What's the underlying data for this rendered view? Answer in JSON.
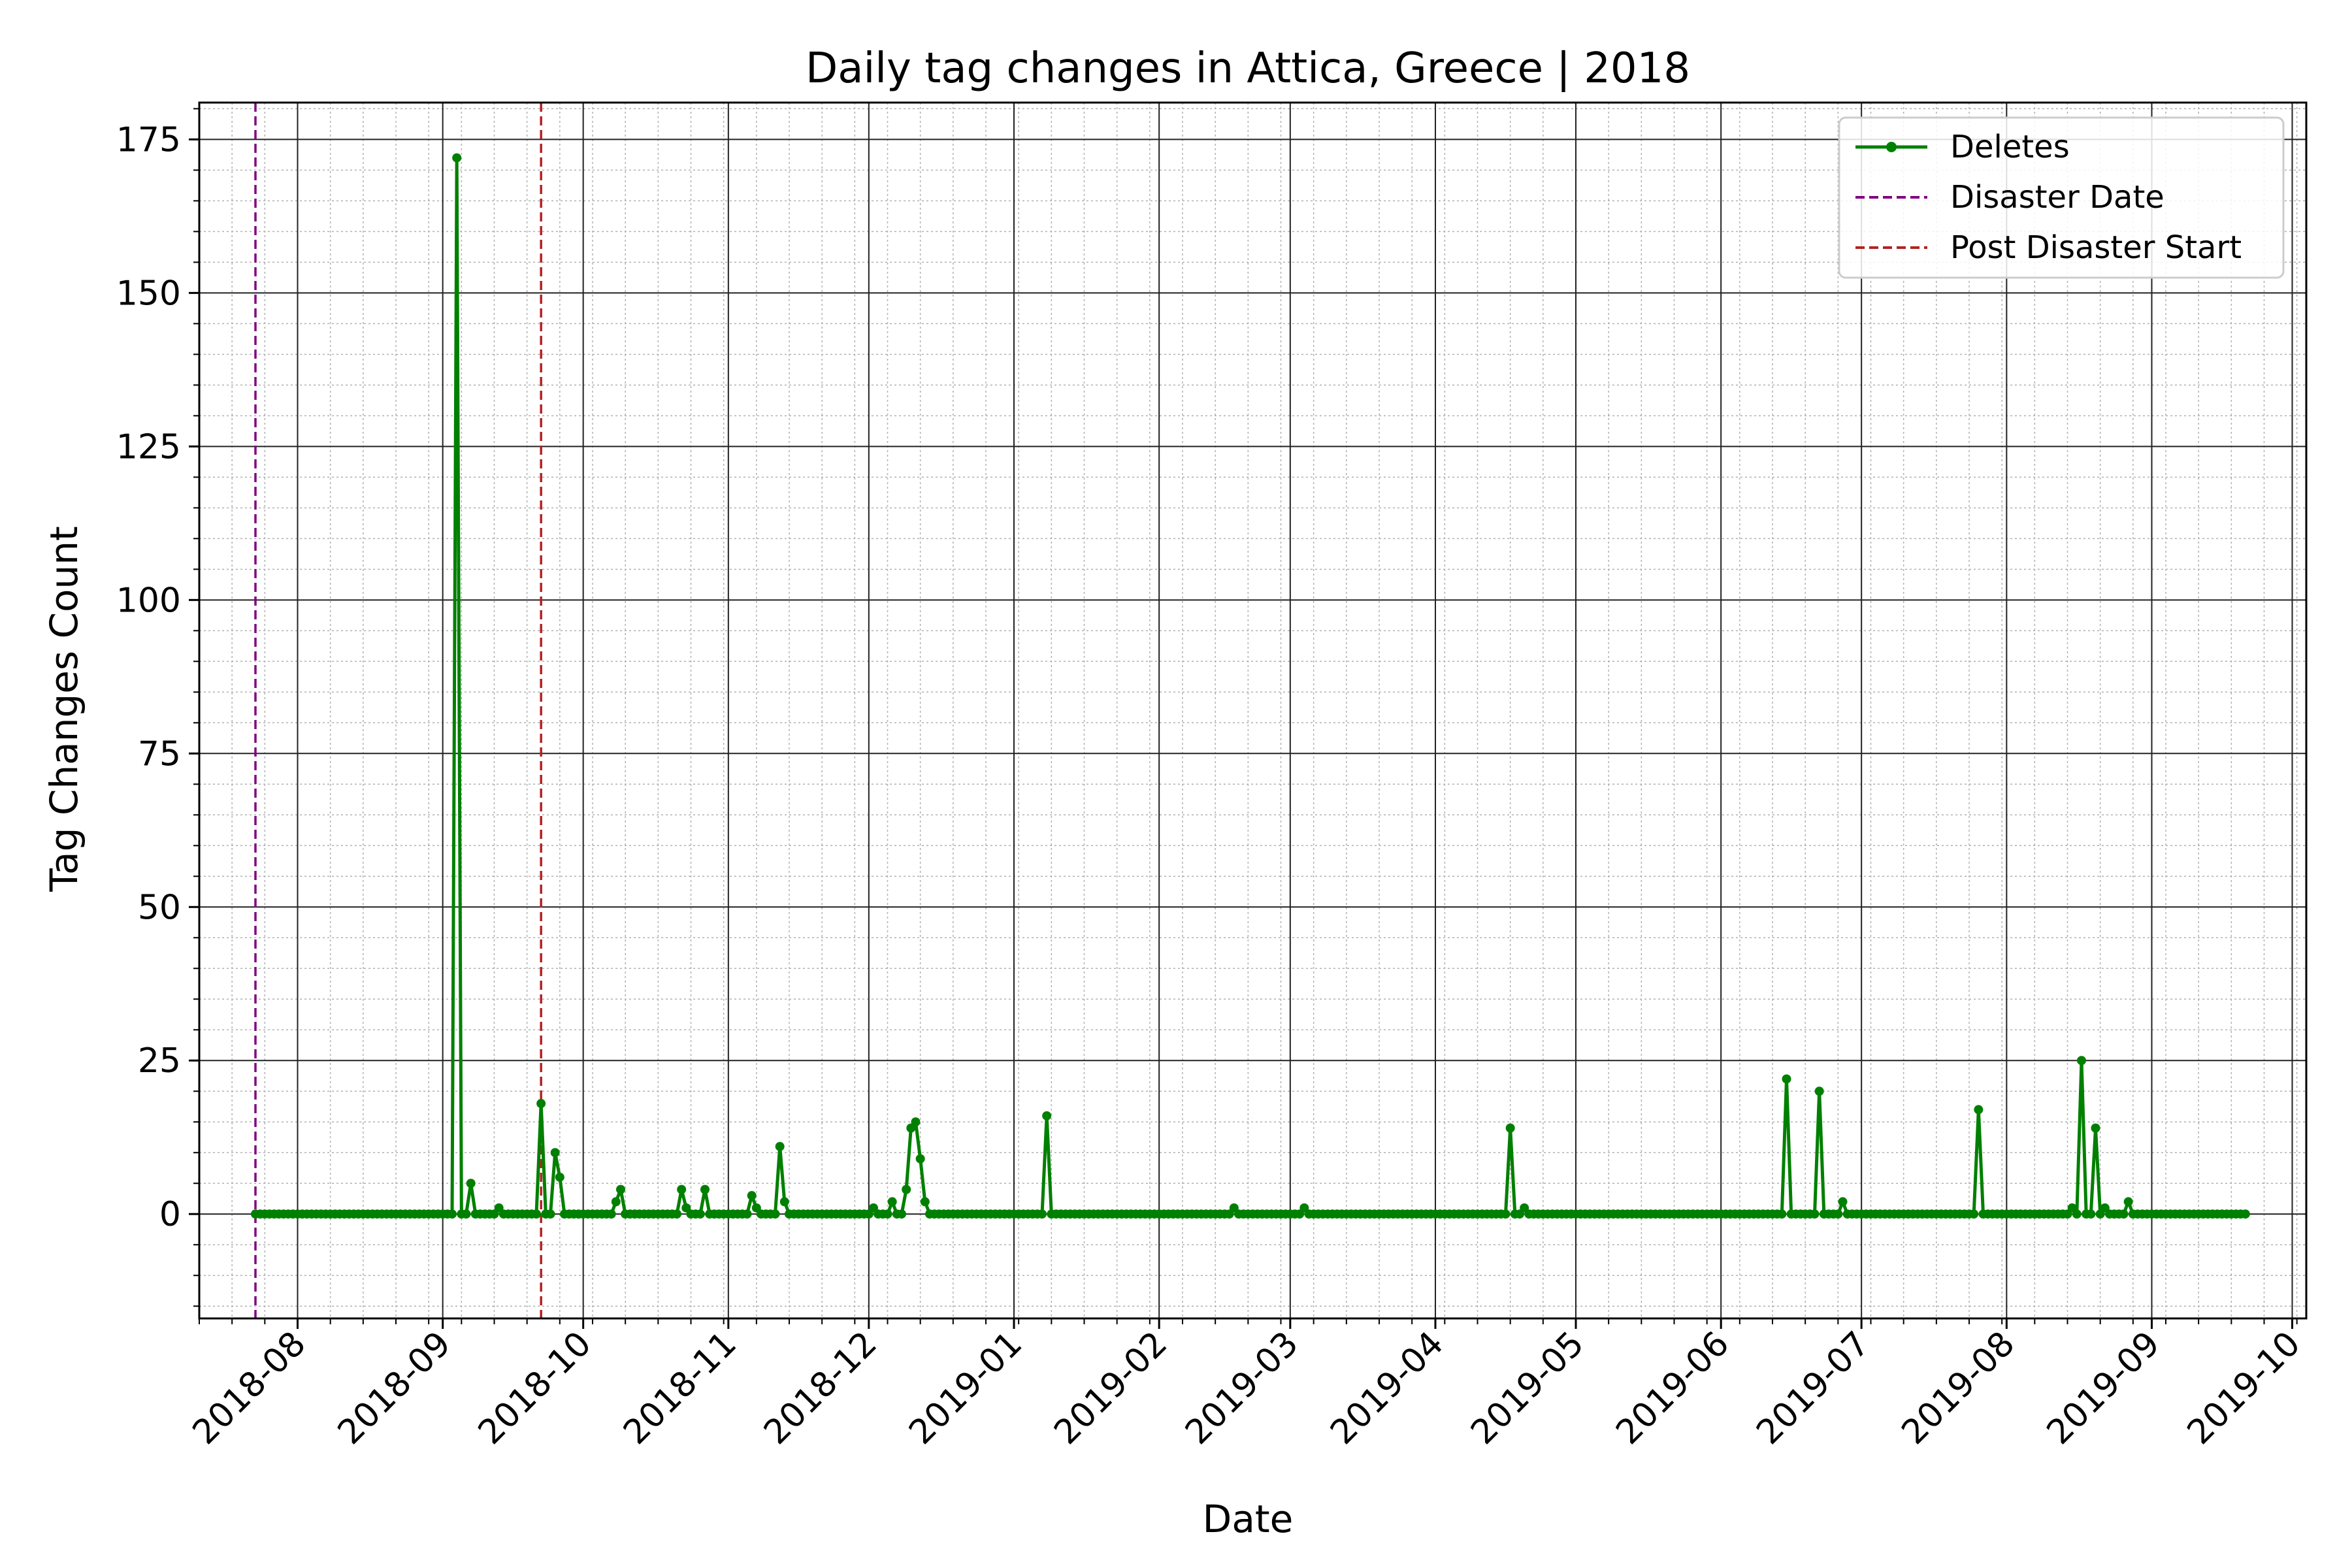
{
  "chart_data": {
    "type": "line",
    "title": "Daily tag changes in Attica, Greece | 2018",
    "xlabel": "Date",
    "ylabel": "Tag Changes Count",
    "xlim": [
      "2018-07-11",
      "2019-10-04"
    ],
    "ylim": [
      -17,
      181
    ],
    "x_ticks": [
      "2018-08",
      "2018-09",
      "2018-10",
      "2018-11",
      "2018-12",
      "2019-01",
      "2019-02",
      "2019-03",
      "2019-04",
      "2019-05",
      "2019-06",
      "2019-07",
      "2019-08",
      "2019-09",
      "2019-10"
    ],
    "y_ticks": [
      0,
      25,
      50,
      75,
      100,
      125,
      150,
      175
    ],
    "grid": true,
    "minor_grid": true,
    "legend_position": "top-right",
    "series": [
      {
        "name": "Deletes",
        "color": "#008000",
        "x_start": "2018-07-23",
        "x_end": "2019-09-21",
        "default_value": 0,
        "points": [
          [
            "2018-09-04",
            172
          ],
          [
            "2018-09-07",
            5
          ],
          [
            "2018-09-13",
            1
          ],
          [
            "2018-09-22",
            18
          ],
          [
            "2018-09-25",
            10
          ],
          [
            "2018-09-26",
            6
          ],
          [
            "2018-10-08",
            2
          ],
          [
            "2018-10-09",
            4
          ],
          [
            "2018-10-22",
            4
          ],
          [
            "2018-10-23",
            1
          ],
          [
            "2018-10-27",
            4
          ],
          [
            "2018-11-06",
            3
          ],
          [
            "2018-11-07",
            1
          ],
          [
            "2018-11-12",
            11
          ],
          [
            "2018-11-13",
            2
          ],
          [
            "2018-12-02",
            1
          ],
          [
            "2018-12-06",
            2
          ],
          [
            "2018-12-09",
            4
          ],
          [
            "2018-12-10",
            14
          ],
          [
            "2018-12-11",
            15
          ],
          [
            "2018-12-12",
            9
          ],
          [
            "2018-12-13",
            2
          ],
          [
            "2019-01-08",
            16
          ],
          [
            "2019-02-17",
            1
          ],
          [
            "2019-03-04",
            1
          ],
          [
            "2019-04-17",
            14
          ],
          [
            "2019-04-20",
            1
          ],
          [
            "2019-06-15",
            22
          ],
          [
            "2019-06-22",
            20
          ],
          [
            "2019-06-27",
            2
          ],
          [
            "2019-07-26",
            17
          ],
          [
            "2019-08-15",
            1
          ],
          [
            "2019-08-17",
            25
          ],
          [
            "2019-08-20",
            14
          ],
          [
            "2019-08-21",
            0
          ],
          [
            "2019-08-22",
            1
          ],
          [
            "2019-08-27",
            2
          ]
        ]
      },
      {
        "name": "Disaster Date",
        "color": "#800080",
        "type": "vline",
        "x": "2018-07-23"
      },
      {
        "name": "Post Disaster Start",
        "color": "#b22222",
        "type": "vline",
        "x": "2018-09-22"
      }
    ]
  }
}
